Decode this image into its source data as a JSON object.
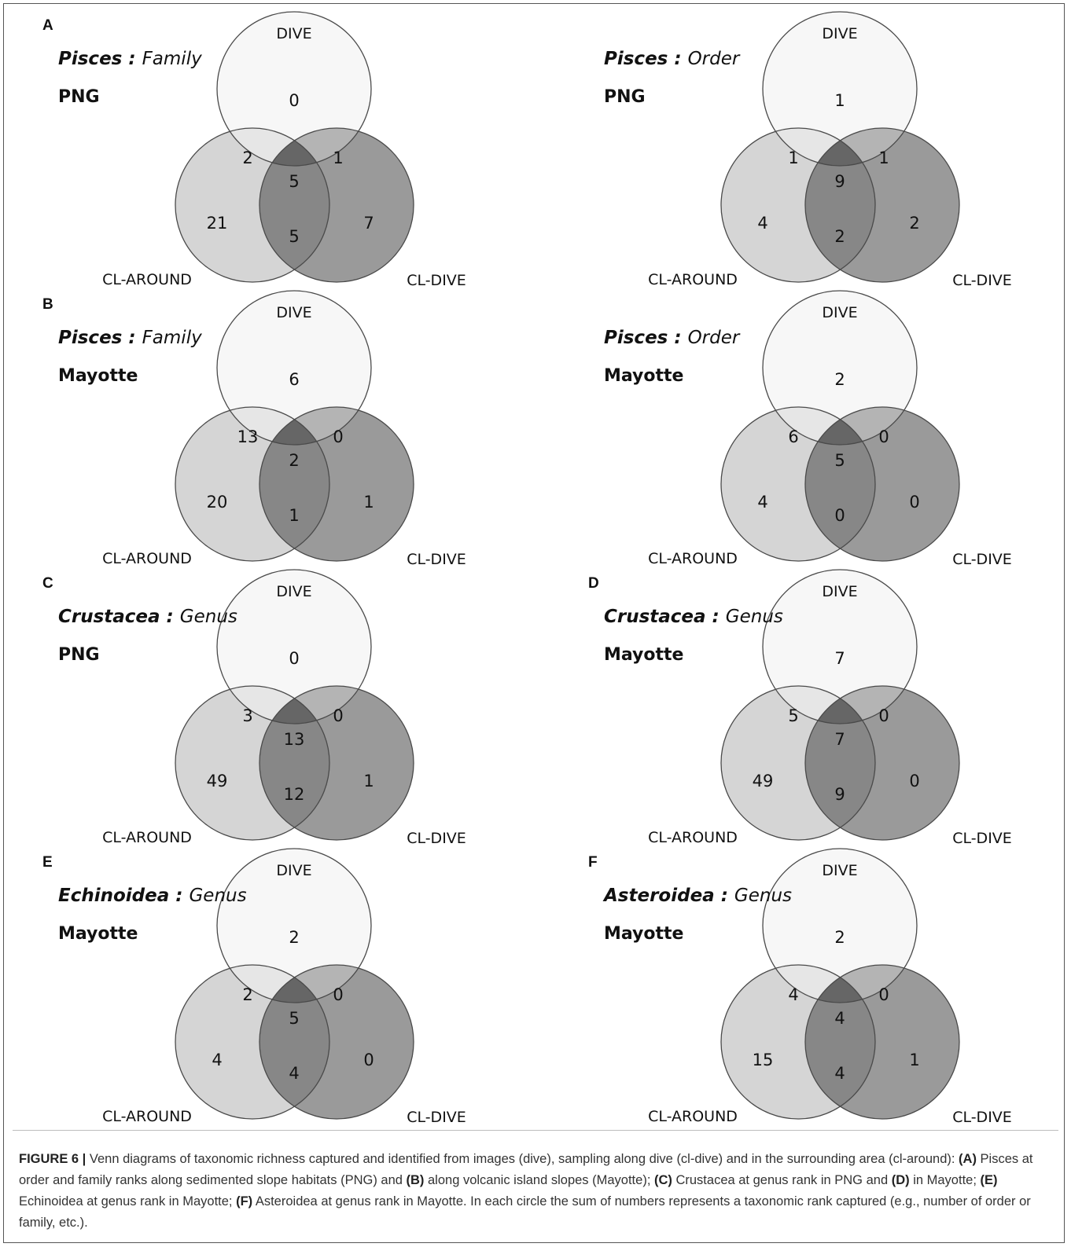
{
  "figure": {
    "panels": [
      {
        "letter": "A",
        "taxon": "Pisces",
        "separator": " : ",
        "rank": "Family",
        "site": "PNG",
        "sets": {
          "top": "DIVE",
          "left": "CL-AROUND",
          "right": "CL-DIVE"
        },
        "counts": {
          "dive_only": "0",
          "dive_around": "2",
          "dive_cldive": "1",
          "all_three": "5",
          "around_only": "21",
          "around_cldive": "5",
          "cldive_only": "7"
        }
      },
      {
        "letter": "",
        "taxon": "Pisces",
        "separator": " : ",
        "rank": "Order",
        "site": "PNG",
        "sets": {
          "top": "DIVE",
          "left": "CL-AROUND",
          "right": "CL-DIVE"
        },
        "counts": {
          "dive_only": "1",
          "dive_around": "1",
          "dive_cldive": "1",
          "all_three": "9",
          "around_only": "4",
          "around_cldive": "2",
          "cldive_only": "2"
        }
      },
      {
        "letter": "B",
        "taxon": "Pisces",
        "separator": " : ",
        "rank": "Family",
        "site": "Mayotte",
        "sets": {
          "top": "DIVE",
          "left": "CL-AROUND",
          "right": "CL-DIVE"
        },
        "counts": {
          "dive_only": "6",
          "dive_around": "13",
          "dive_cldive": "0",
          "all_three": "2",
          "around_only": "20",
          "around_cldive": "1",
          "cldive_only": "1"
        }
      },
      {
        "letter": "",
        "taxon": "Pisces",
        "separator": " : ",
        "rank": "Order",
        "site": "Mayotte",
        "sets": {
          "top": "DIVE",
          "left": "CL-AROUND",
          "right": "CL-DIVE"
        },
        "counts": {
          "dive_only": "2",
          "dive_around": "6",
          "dive_cldive": "0",
          "all_three": "5",
          "around_only": "4",
          "around_cldive": "0",
          "cldive_only": "0"
        }
      },
      {
        "letter": "C",
        "taxon": "Crustacea",
        "separator": " : ",
        "rank": "Genus",
        "site": "PNG",
        "sets": {
          "top": "DIVE",
          "left": "CL-AROUND",
          "right": "CL-DIVE"
        },
        "counts": {
          "dive_only": "0",
          "dive_around": "3",
          "dive_cldive": "0",
          "all_three": "13",
          "around_only": "49",
          "around_cldive": "12",
          "cldive_only": "1"
        }
      },
      {
        "letter": "D",
        "taxon": "Crustacea",
        "separator": " : ",
        "rank": "Genus",
        "site": "Mayotte",
        "sets": {
          "top": "DIVE",
          "left": "CL-AROUND",
          "right": "CL-DIVE"
        },
        "counts": {
          "dive_only": "7",
          "dive_around": "5",
          "dive_cldive": "0",
          "all_three": "7",
          "around_only": "49",
          "around_cldive": "9",
          "cldive_only": "0"
        }
      },
      {
        "letter": "E",
        "taxon": "Echinoidea",
        "separator": " : ",
        "rank": "Genus",
        "site": "Mayotte",
        "sets": {
          "top": "DIVE",
          "left": "CL-AROUND",
          "right": "CL-DIVE"
        },
        "counts": {
          "dive_only": "2",
          "dive_around": "2",
          "dive_cldive": "0",
          "all_three": "5",
          "around_only": "4",
          "around_cldive": "4",
          "cldive_only": "0"
        }
      },
      {
        "letter": "F",
        "taxon": "Asteroidea",
        "separator": " : ",
        "rank": "Genus",
        "site": "Mayotte",
        "sets": {
          "top": "DIVE",
          "left": "CL-AROUND",
          "right": "CL-DIVE"
        },
        "counts": {
          "dive_only": "2",
          "dive_around": "4",
          "dive_cldive": "0",
          "all_three": "4",
          "around_only": "15",
          "around_cldive": "4",
          "cldive_only": "1"
        }
      }
    ],
    "colors": {
      "dive_fill": "#f7f7f7",
      "around_fill": "#d5d5d5",
      "cldive_fill": "#9a9a9a",
      "dive_around_fill": "#e6e6e6",
      "dive_cldive_fill": "#b4b4b4",
      "around_cldive_fill": "#878787",
      "all_three_fill": "#666666",
      "stroke": "#4a4a4a"
    }
  },
  "caption": {
    "figure_label": "FIGURE 6 |",
    "intro": " Venn diagrams of taxonomic richness captured and identified from images (dive), sampling along dive (cl-dive) and in the surrounding area (cl-around): ",
    "a_tag": "(A)",
    "a_text": " Pisces at order and family ranks along sedimented slope habitats (PNG) and ",
    "b_tag": "(B)",
    "b_text": " along volcanic island slopes (Mayotte); ",
    "c_tag": "(C)",
    "c_text": " Crustacea at genus rank in PNG and ",
    "d_tag": "(D)",
    "d_text": " in Mayotte; ",
    "e_tag": "(E)",
    "e_text": " Echinoidea at genus rank in Mayotte; ",
    "f_tag": "(F)",
    "f_text": " Asteroidea at genus rank in Mayotte. In each circle the sum of numbers represents a taxonomic rank captured (e.g., number of order or family, etc.)."
  }
}
